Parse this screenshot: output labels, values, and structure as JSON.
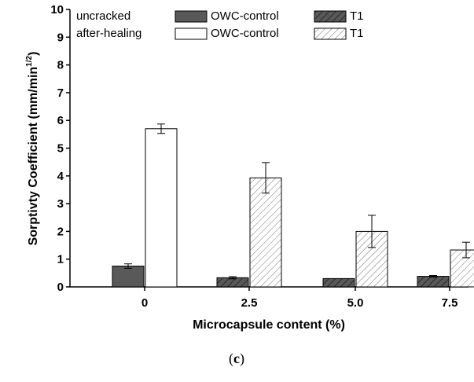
{
  "chart_data": {
    "type": "bar",
    "categories": [
      "0",
      "2.5",
      "5.0",
      "7.5"
    ],
    "series": [
      {
        "name": "uncracked",
        "legend_group": "uncracked",
        "values": [
          0.75,
          0.33,
          0.3,
          0.38
        ],
        "errors": [
          0.08,
          0.04,
          0.0,
          0.03
        ],
        "fill": "#595959",
        "pattern": "solid"
      },
      {
        "name": "after-healing",
        "legend_group": "after-healing",
        "values": [
          5.7,
          3.93,
          2.0,
          1.33
        ],
        "errors": [
          0.17,
          0.55,
          0.58,
          0.28
        ],
        "fill": "#ffffff",
        "pattern": "solid-then-hatch"
      }
    ],
    "legend": {
      "rows": [
        {
          "label": "uncracked",
          "entries": [
            {
              "label": "OWC-control",
              "style": "dark-solid"
            },
            {
              "label": "T1",
              "style": "dark-hatch"
            }
          ]
        },
        {
          "label": "after-healing",
          "entries": [
            {
              "label": "OWC-control",
              "style": "white-solid"
            },
            {
              "label": "T1",
              "style": "white-hatch"
            }
          ]
        }
      ],
      "placement": "top"
    },
    "xlabel": "Microcapsule content (%)",
    "ylabel": "Sorptivty Coefficient (mm/min",
    "ylabel_sup": "1/2",
    "ylabel_end": ")",
    "ylim": [
      0,
      10
    ],
    "yticks": [
      "0",
      "1",
      "2",
      "3",
      "4",
      "5",
      "6",
      "7",
      "8",
      "9",
      "10"
    ],
    "grid": false,
    "caption_open": "(",
    "caption_letter": "c",
    "caption_close": ")",
    "colors": {
      "dark": "#595959",
      "hatch_dark": "#404040",
      "hatch_light": "#707070",
      "axis": "#000000"
    }
  }
}
